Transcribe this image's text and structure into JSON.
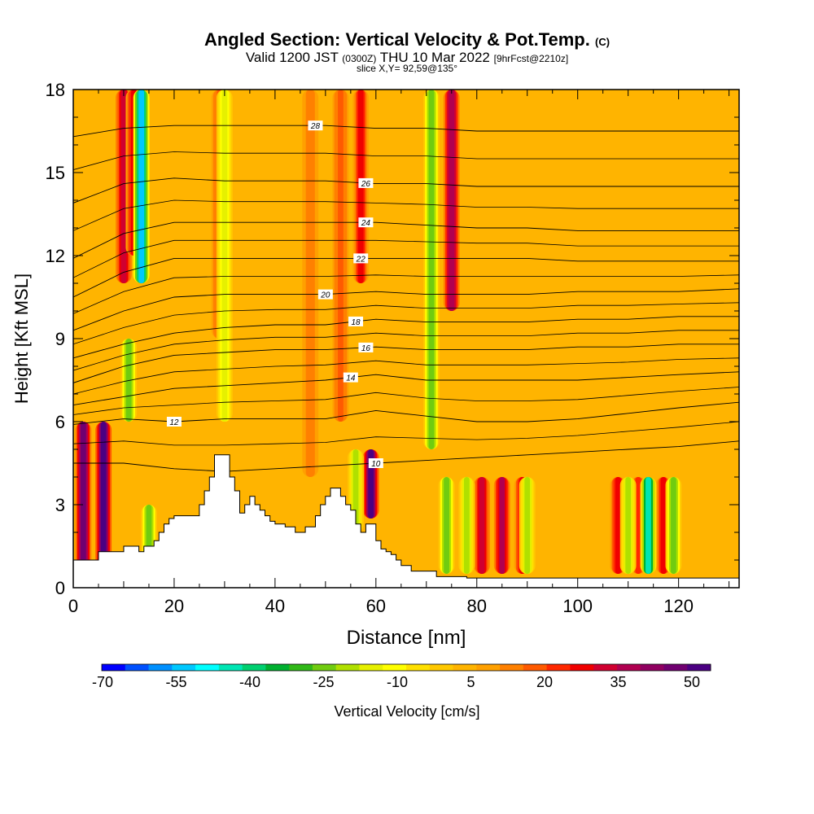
{
  "header": {
    "title": "Angled Section: Vertical Velocity & Pot.Temp.",
    "title_mark": "(C)",
    "valid_a": "Valid 1200 JST",
    "valid_z": "(0300Z)",
    "valid_b": "THU 10 Mar 2022",
    "fcst": "[9hrFcst@2210z]",
    "slice": "slice X,Y= 92,59@135°"
  },
  "chart_data": {
    "type": "heatmap",
    "xlabel": "Distance [nm]",
    "ylabel": "Height [Kft MSL]",
    "xlim": [
      0,
      132
    ],
    "ylim": [
      0,
      18
    ],
    "x_ticks": [
      0,
      20,
      40,
      60,
      80,
      100,
      120
    ],
    "y_ticks": [
      0,
      3,
      6,
      9,
      12,
      15,
      18
    ],
    "colorbar": {
      "label": "Vertical Velocity [cm/s]",
      "tick_labels": [
        "-70",
        "-55",
        "-40",
        "-25",
        "-10",
        "5",
        "20",
        "35",
        "50"
      ],
      "colors": [
        "#0000ff",
        "#0050ff",
        "#0090ff",
        "#00c8ff",
        "#00ffff",
        "#00e6b4",
        "#00d070",
        "#00b030",
        "#30b818",
        "#70cc10",
        "#b0e000",
        "#e6f000",
        "#ffff00",
        "#ffe000",
        "#ffc800",
        "#ffb400",
        "#ffa000",
        "#ff8000",
        "#ff5a00",
        "#ff2800",
        "#f00000",
        "#d00030",
        "#b00050",
        "#900060",
        "#700070",
        "#4b0082"
      ]
    },
    "background_value": 5,
    "updraft_columns": [
      {
        "x": 2,
        "y0": 0.5,
        "y1": 6,
        "w": 50
      },
      {
        "x": 6,
        "y0": 0.5,
        "y1": 6,
        "w": 55
      },
      {
        "x": 10,
        "y0": 11,
        "y1": 18,
        "w": 35
      },
      {
        "x": 12,
        "y0": 12,
        "y1": 18,
        "w": 30
      },
      {
        "x": 29,
        "y0": 9,
        "y1": 18,
        "w": 20
      },
      {
        "x": 47,
        "y0": 4,
        "y1": 18,
        "w": 15
      },
      {
        "x": 53,
        "y0": 6,
        "y1": 18,
        "w": 20
      },
      {
        "x": 57,
        "y0": 11,
        "y1": 18,
        "w": 28
      },
      {
        "x": 59,
        "y0": 2.5,
        "y1": 5,
        "w": 55
      },
      {
        "x": 75,
        "y0": 10,
        "y1": 18,
        "w": 40
      },
      {
        "x": 81,
        "y0": 0.5,
        "y1": 4,
        "w": 35
      },
      {
        "x": 85,
        "y0": 0.5,
        "y1": 4,
        "w": 38
      },
      {
        "x": 89,
        "y0": 0.5,
        "y1": 4,
        "w": 30
      },
      {
        "x": 108,
        "y0": 0.5,
        "y1": 4,
        "w": 30
      },
      {
        "x": 112,
        "y0": 0.5,
        "y1": 4,
        "w": 25
      },
      {
        "x": 117,
        "y0": 0.5,
        "y1": 4,
        "w": 28
      }
    ],
    "downdraft_columns": [
      {
        "x": 13.5,
        "y0": 11,
        "y1": 18,
        "w": -55
      },
      {
        "x": 11,
        "y0": 6,
        "y1": 9,
        "w": -25
      },
      {
        "x": 15,
        "y0": 1,
        "y1": 3,
        "w": -25
      },
      {
        "x": 30,
        "y0": 6,
        "y1": 18,
        "w": -15
      },
      {
        "x": 56,
        "y0": 2,
        "y1": 5,
        "w": -20
      },
      {
        "x": 71,
        "y0": 5,
        "y1": 18,
        "w": -25
      },
      {
        "x": 74,
        "y0": 0.5,
        "y1": 4,
        "w": -25
      },
      {
        "x": 78,
        "y0": 0.5,
        "y1": 4,
        "w": -20
      },
      {
        "x": 90,
        "y0": 0.5,
        "y1": 4,
        "w": -20
      },
      {
        "x": 110,
        "y0": 0.5,
        "y1": 4,
        "w": -20
      },
      {
        "x": 114,
        "y0": 0.5,
        "y1": 4,
        "w": -45
      },
      {
        "x": 119,
        "y0": 0.5,
        "y1": 4,
        "w": -25
      }
    ],
    "terrain": {
      "x": [
        0,
        3,
        5,
        8,
        10,
        13,
        14,
        16,
        17,
        18,
        19,
        20,
        22,
        25,
        26,
        27,
        28,
        29,
        31,
        32,
        33,
        34,
        35,
        36,
        37,
        38,
        39,
        40,
        42,
        44,
        46,
        48,
        49,
        50,
        51,
        52,
        53,
        54,
        55,
        56,
        57,
        58,
        60,
        61,
        62,
        63,
        64,
        65,
        67,
        70,
        72,
        78,
        132
      ],
      "y": [
        1.0,
        1.0,
        1.3,
        1.3,
        1.5,
        1.3,
        1.5,
        1.7,
        2.0,
        2.3,
        2.5,
        2.6,
        2.6,
        3.0,
        3.5,
        4.0,
        4.8,
        4.8,
        4.0,
        3.5,
        2.7,
        3.0,
        3.3,
        3.0,
        2.8,
        2.6,
        2.4,
        2.3,
        2.2,
        2.0,
        2.2,
        2.6,
        3.0,
        3.3,
        3.6,
        3.6,
        3.3,
        3.0,
        2.8,
        2.3,
        2.0,
        2.3,
        1.7,
        1.4,
        1.3,
        1.2,
        1.0,
        0.8,
        0.6,
        0.6,
        0.4,
        0.35,
        0.35
      ]
    },
    "isentropes": [
      {
        "value": 10,
        "label_x": 60,
        "y": [
          4.5,
          4.5,
          4.3,
          4.2,
          4.3,
          4.4,
          4.5,
          4.6,
          4.7,
          4.8,
          4.9,
          5.0,
          5.1,
          5.3
        ]
      },
      {
        "value": 12,
        "label_x": 20,
        "y": [
          5.9,
          6.1,
          6.0,
          6.1,
          6.1,
          6.1,
          6.4,
          6.2,
          6.0,
          6.0,
          6.1,
          6.3,
          6.5,
          6.7
        ]
      },
      {
        "value": 14,
        "label_x": 55,
        "y": [
          6.6,
          6.9,
          7.2,
          7.3,
          7.4,
          7.5,
          7.7,
          7.5,
          7.5,
          7.5,
          7.5,
          7.6,
          7.7,
          7.8
        ]
      },
      {
        "value": 16,
        "label_x": 58,
        "y": [
          7.4,
          8.0,
          8.4,
          8.5,
          8.6,
          8.6,
          8.7,
          8.6,
          8.6,
          8.6,
          8.7,
          8.7,
          8.8,
          8.8
        ]
      },
      {
        "value": 18,
        "label_x": 56,
        "y": [
          8.3,
          8.8,
          9.2,
          9.4,
          9.5,
          9.5,
          9.7,
          9.6,
          9.6,
          9.6,
          9.7,
          9.7,
          9.8,
          9.8
        ]
      },
      {
        "value": 20,
        "label_x": 50,
        "y": [
          9.3,
          10.0,
          10.5,
          10.6,
          10.6,
          10.6,
          10.7,
          10.6,
          10.6,
          10.6,
          10.7,
          10.7,
          10.7,
          10.8
        ]
      },
      {
        "value": 22,
        "label_x": 57,
        "y": [
          10.5,
          11.4,
          11.9,
          11.9,
          11.9,
          11.9,
          11.9,
          11.9,
          11.9,
          11.9,
          11.8,
          11.8,
          11.8,
          11.8
        ]
      },
      {
        "value": 24,
        "label_x": 58,
        "y": [
          11.9,
          12.8,
          13.2,
          13.2,
          13.2,
          13.2,
          13.2,
          13.1,
          13.0,
          13.0,
          12.9,
          12.9,
          12.9,
          12.9
        ]
      },
      {
        "value": 26,
        "label_x": 58,
        "y": [
          13.9,
          14.6,
          14.8,
          14.7,
          14.7,
          14.7,
          14.6,
          14.6,
          14.5,
          14.5,
          14.5,
          14.5,
          14.5,
          14.5
        ]
      },
      {
        "value": 28,
        "label_x": 48,
        "y": [
          16.3,
          16.6,
          16.7,
          16.7,
          16.7,
          16.7,
          16.6,
          16.6,
          16.5,
          16.5,
          16.5,
          16.5,
          16.5,
          16.5
        ]
      }
    ],
    "isentrope_x": [
      0,
      10,
      20,
      30,
      40,
      50,
      60,
      70,
      80,
      90,
      100,
      110,
      120,
      132
    ]
  }
}
